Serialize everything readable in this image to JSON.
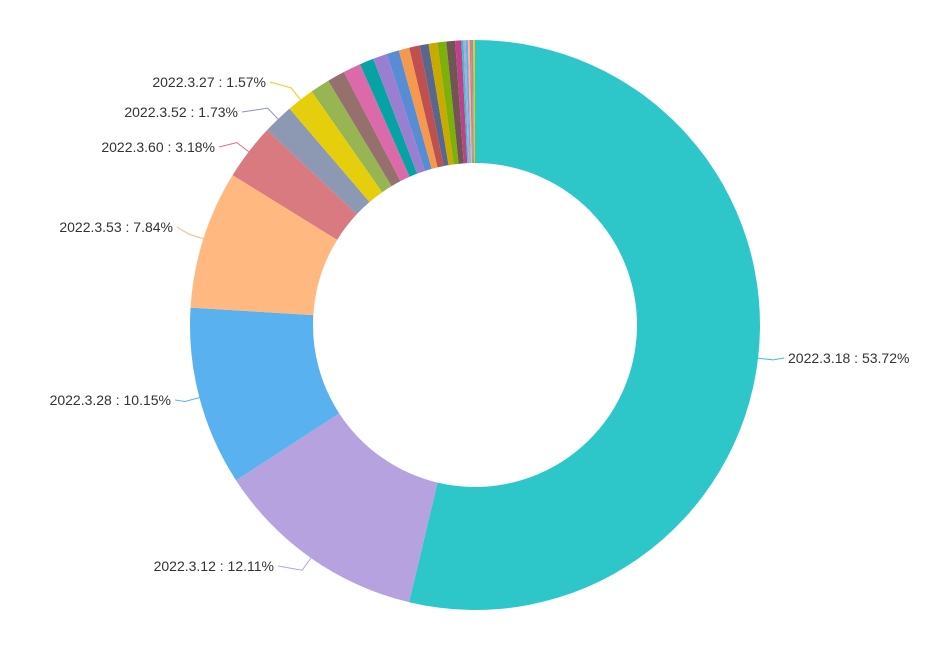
{
  "chart_data": {
    "type": "pie",
    "variant": "donut",
    "direction": "clockwise-from-top",
    "slices": [
      {
        "name": "2022.3.18",
        "value": 53.72,
        "label": "2022.3.18 : 53.72%",
        "color": "#2ec7c9"
      },
      {
        "name": "2022.3.12",
        "value": 12.11,
        "label": "2022.3.12 : 12.11%",
        "color": "#b6a2de"
      },
      {
        "name": "2022.3.28",
        "value": 10.15,
        "label": "2022.3.28 : 10.15%",
        "color": "#5ab1ef"
      },
      {
        "name": "2022.3.53",
        "value": 7.84,
        "label": "2022.3.53 : 7.84%",
        "color": "#ffb980"
      },
      {
        "name": "2022.3.60",
        "value": 3.18,
        "label": "2022.3.60 : 3.18%",
        "color": "#d87a80"
      },
      {
        "name": "2022.3.52",
        "value": 1.73,
        "label": "2022.3.52 : 1.73%",
        "color": "#8d98b3"
      },
      {
        "name": "2022.3.27",
        "value": 1.57,
        "label": "2022.3.27 : 1.57%",
        "color": "#e5cf0d"
      },
      {
        "value": 1.1,
        "color": "#97b552"
      },
      {
        "value": 1.0,
        "color": "#95706d"
      },
      {
        "value": 1.0,
        "color": "#dc69aa"
      },
      {
        "value": 0.8,
        "color": "#07a2a4"
      },
      {
        "value": 0.8,
        "color": "#9a7fd1"
      },
      {
        "value": 0.7,
        "color": "#588dd5"
      },
      {
        "value": 0.6,
        "color": "#f5994e"
      },
      {
        "value": 0.6,
        "color": "#c05050"
      },
      {
        "value": 0.5,
        "color": "#59678c"
      },
      {
        "value": 0.5,
        "color": "#c9ab00"
      },
      {
        "value": 0.5,
        "color": "#7eb00a"
      },
      {
        "value": 0.5,
        "color": "#6f5553"
      },
      {
        "value": 0.35,
        "color": "#c14089"
      },
      {
        "value": 0.12,
        "color": "#2ec7c9"
      },
      {
        "value": 0.12,
        "color": "#b6a2de"
      },
      {
        "value": 0.12,
        "color": "#5ab1ef"
      },
      {
        "value": 0.1,
        "color": "#ffb980"
      },
      {
        "value": 0.1,
        "color": "#d87a80"
      },
      {
        "value": 0.1,
        "color": "#8d98b3"
      },
      {
        "value": 0.1,
        "color": "#e5cf0d"
      }
    ]
  }
}
